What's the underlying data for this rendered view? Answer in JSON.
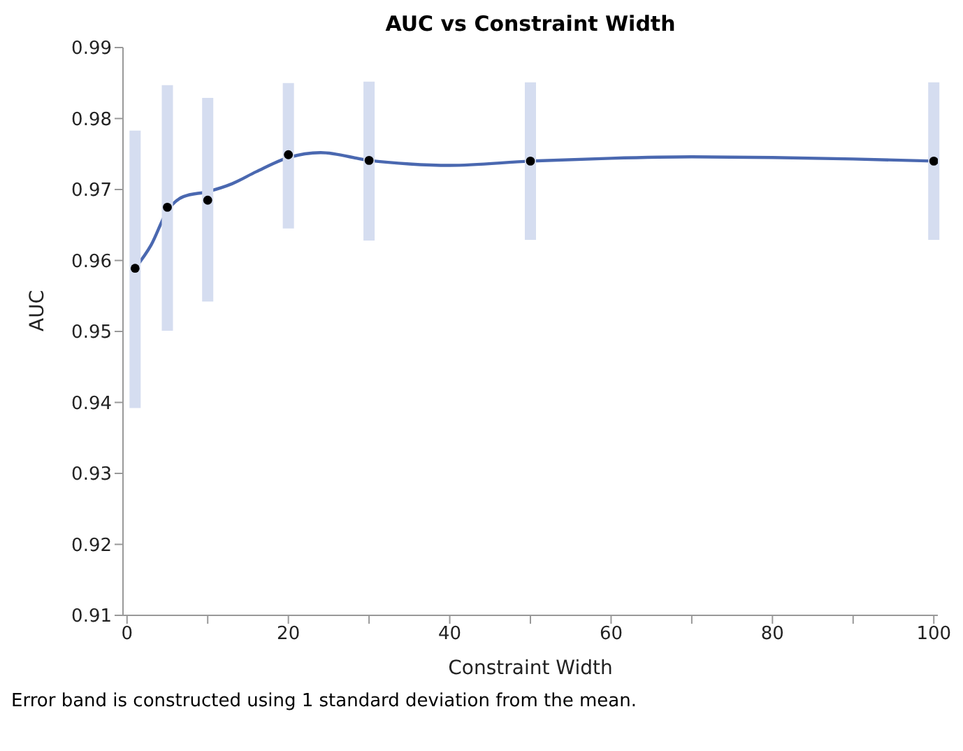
{
  "chart_data": {
    "type": "scatter",
    "title": "AUC vs Constraint Width",
    "xlabel": "Constraint Width",
    "ylabel": "AUC",
    "annotations": [
      "Error band is constructed using 1 standard deviation from the mean."
    ],
    "xlim": [
      -0.5,
      100.5
    ],
    "xticks": [
      0,
      {
        "value": 10,
        "label": null
      },
      20,
      {
        "value": 30,
        "label": null
      },
      40,
      {
        "value": 50,
        "label": null
      },
      60,
      {
        "value": 70,
        "label": null
      },
      80,
      {
        "value": 90,
        "label": null
      },
      100
    ],
    "ylim": [
      0.91,
      0.99
    ],
    "yticks": [
      0.91,
      0.92,
      0.93,
      0.94,
      0.95,
      0.96,
      0.97,
      0.98,
      0.99
    ],
    "grid": false,
    "legend": false,
    "marker": "circle",
    "series": [
      {
        "color": "#000000",
        "x": [
          1,
          5,
          10,
          20,
          30,
          50,
          100
        ],
        "values": [
          0.9589,
          0.9675,
          0.9685,
          0.9749,
          0.9741,
          0.974,
          0.974
        ],
        "errors": [
          [
            0.9392,
            0.9783
          ],
          [
            0.9501,
            0.9847
          ],
          [
            0.9542,
            0.9829
          ],
          [
            0.9645,
            0.985
          ],
          [
            0.9628,
            0.9852
          ],
          [
            0.9629,
            0.9851
          ],
          [
            0.9629,
            0.9851
          ]
        ]
      },
      {
        "type": "line",
        "color": "#4a68b0",
        "marker": "none",
        "x": [
          1,
          3,
          5,
          7,
          10,
          13,
          16,
          20,
          24,
          30,
          35,
          40,
          50,
          60,
          70,
          80,
          90,
          100
        ],
        "values": [
          0.9589,
          0.9622,
          0.967,
          0.969,
          0.9697,
          0.9708,
          0.9725,
          0.9745,
          0.9752,
          0.9741,
          0.9736,
          0.9734,
          0.974,
          0.9744,
          0.9746,
          0.9745,
          0.9743,
          0.974
        ]
      }
    ]
  }
}
